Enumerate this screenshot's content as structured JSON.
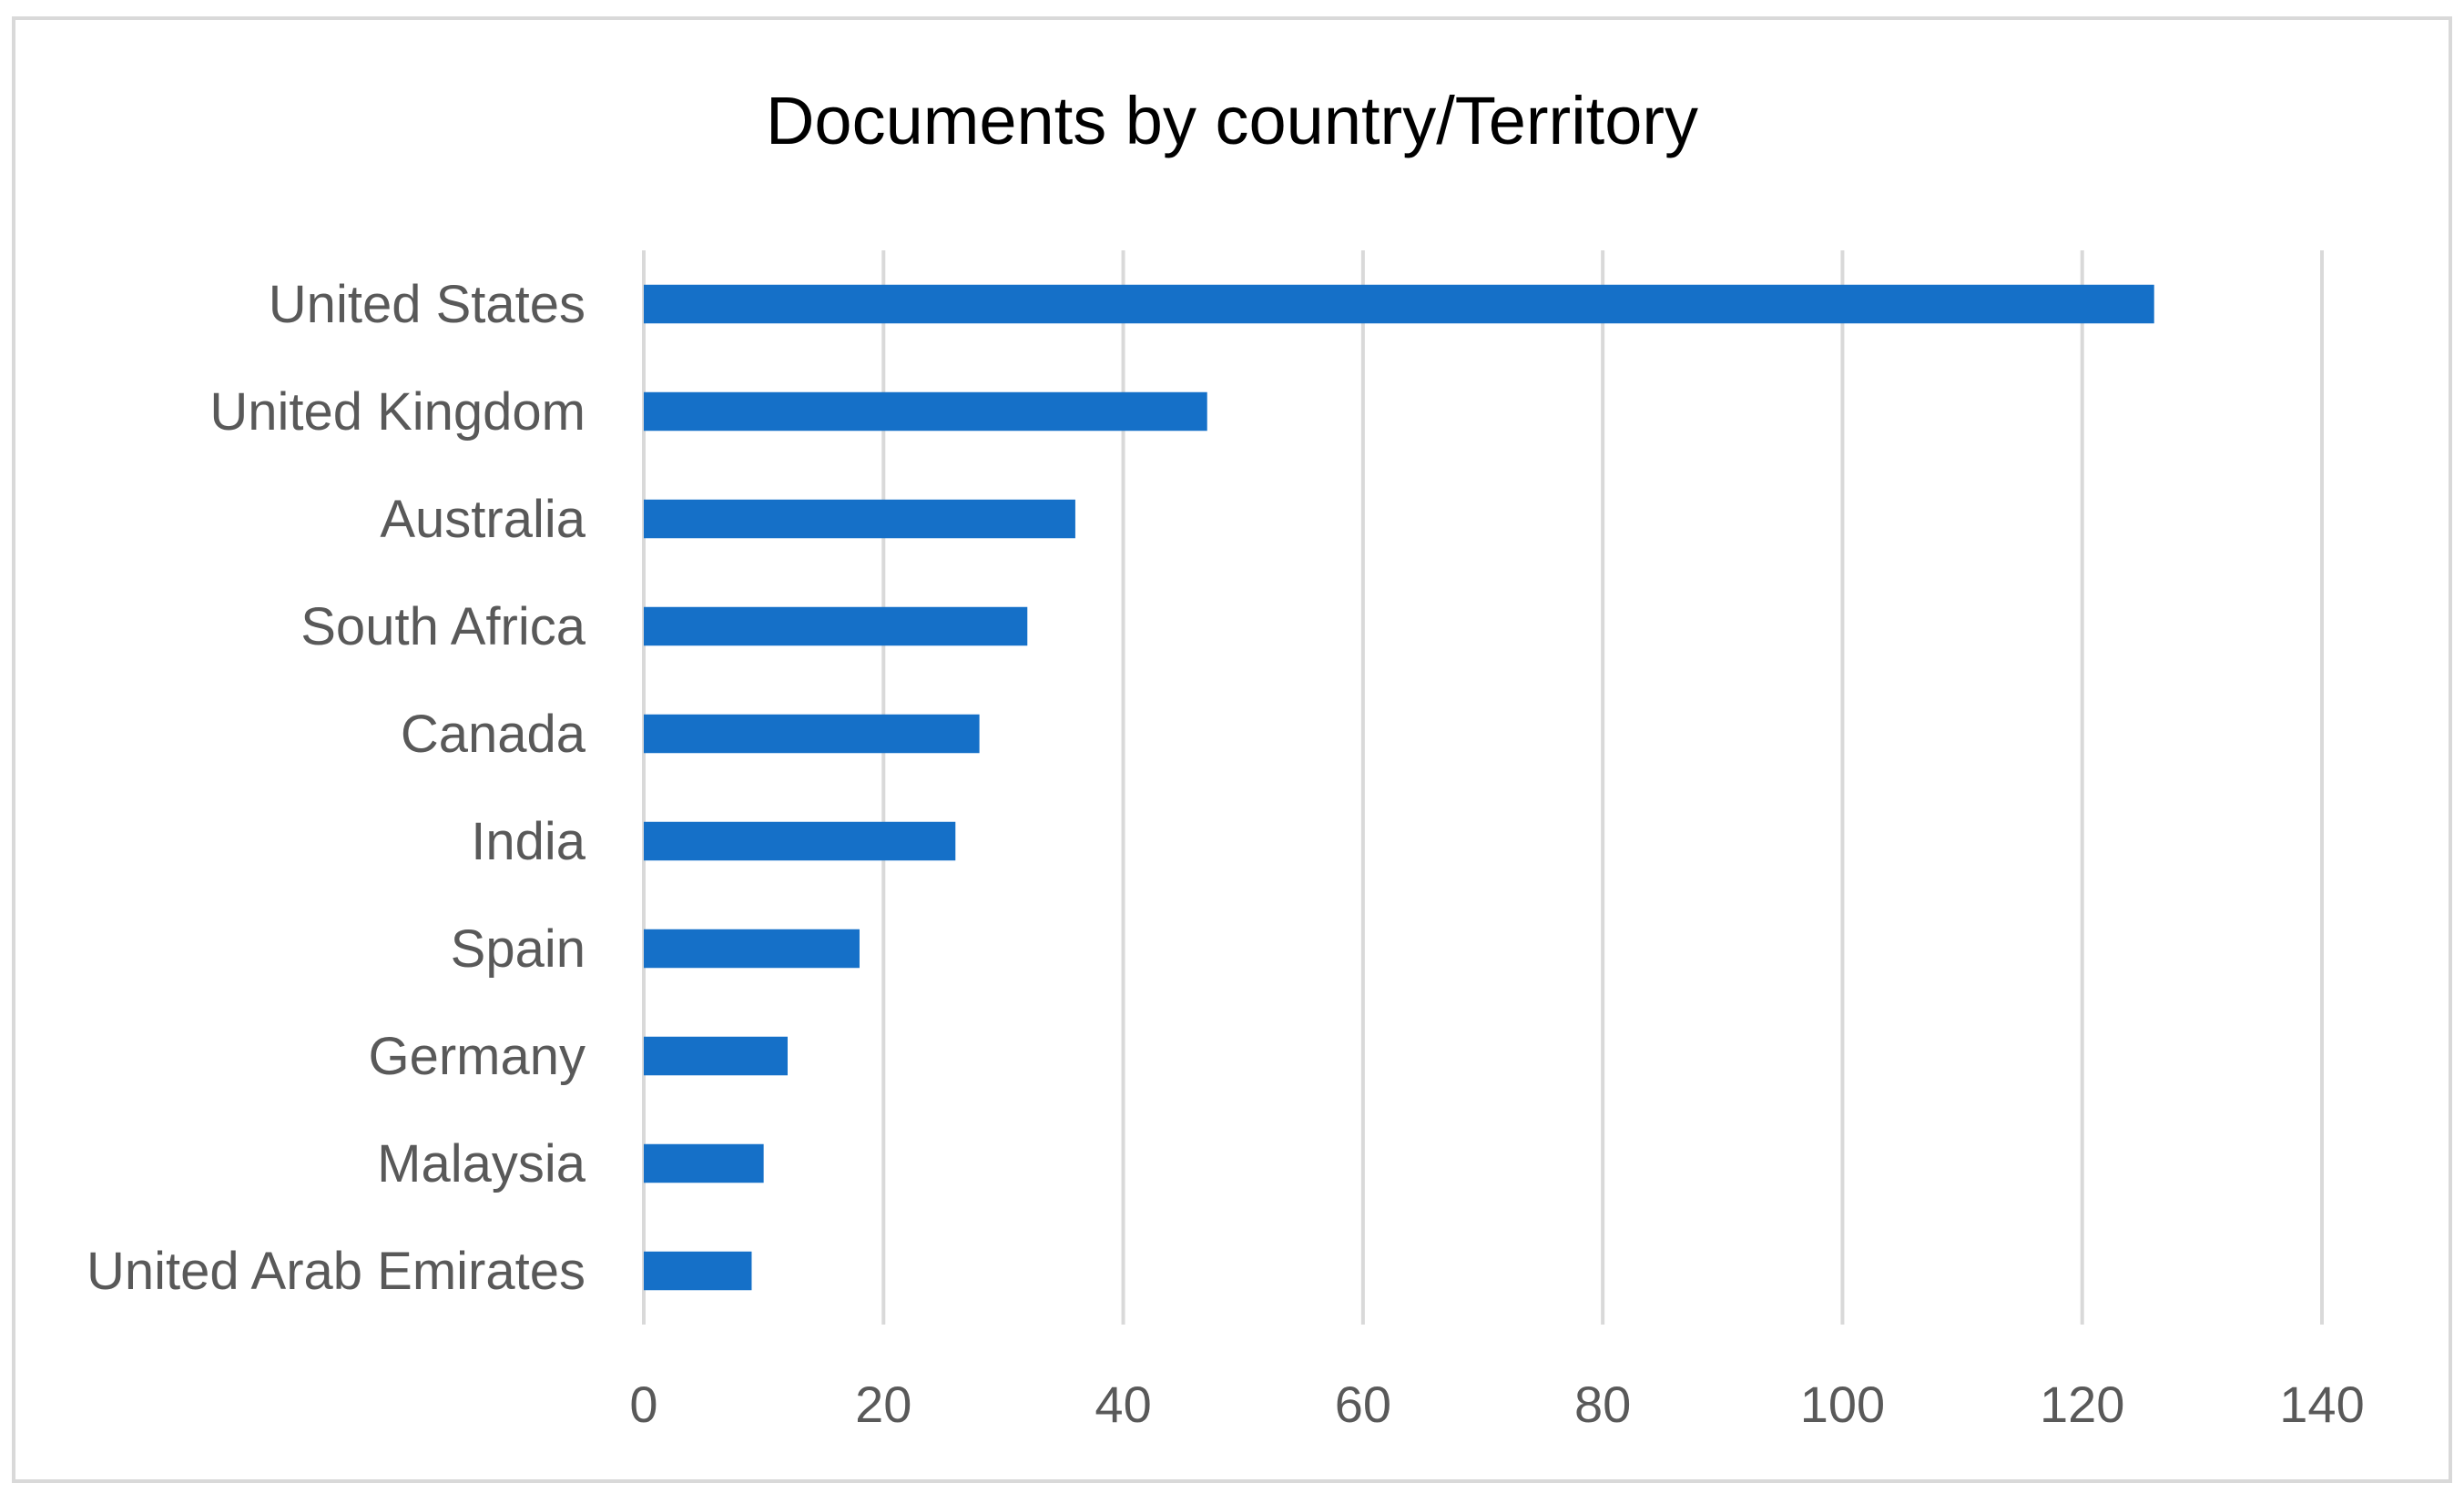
{
  "chart_data": {
    "type": "bar",
    "orientation": "horizontal",
    "title": "Documents by country/Territory",
    "xlabel": "",
    "ylabel": "",
    "categories": [
      "United States",
      "United Kingdom",
      "Australia",
      "South Africa",
      "Canada",
      "India",
      "Spain",
      "Germany",
      "Malaysia",
      "United Arab Emirates"
    ],
    "values": [
      126,
      47,
      36,
      32,
      28,
      26,
      18,
      12,
      10,
      9
    ],
    "xlim": [
      0,
      140
    ],
    "xticks": [
      0,
      20,
      40,
      60,
      80,
      100,
      120,
      140
    ],
    "grid": "vertical",
    "legend": "none",
    "colors": {
      "bar": "#1570C8",
      "grid": "#D9D9D9",
      "text": "#595959",
      "title": "#000000",
      "border": "#D9D9D9"
    }
  }
}
